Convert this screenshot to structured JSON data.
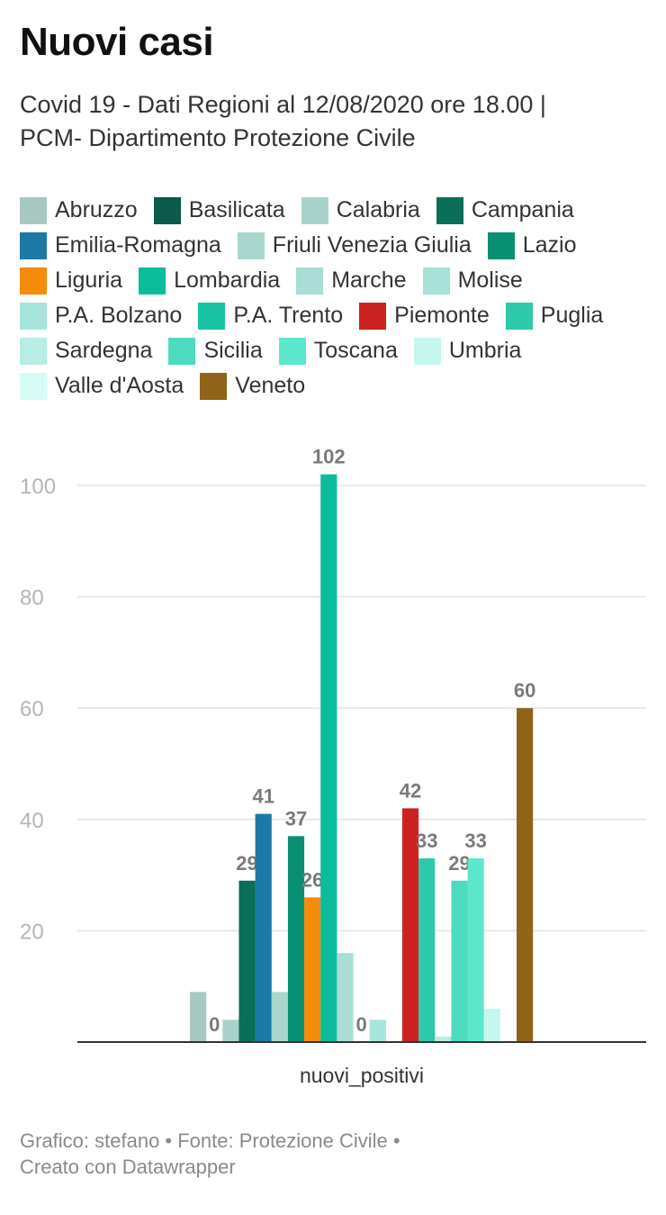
{
  "title": "Nuovi casi",
  "subtitle_line1": "Covid 19 - Dati Regioni al 12/08/2020 ore 18.00 |",
  "subtitle_line2": "PCM- Dipartimento Protezione Civile",
  "footer_line1": "Grafico: stefano • Fonte: Protezione Civile •",
  "footer_line2": "Creato con Datawrapper",
  "chart_data": {
    "type": "bar",
    "categories": [
      "nuovi_positivi"
    ],
    "xlabel": "nuovi_positivi",
    "ylim": [
      0,
      105
    ],
    "yticks": [
      20,
      40,
      60,
      80,
      100
    ],
    "grid": true,
    "legend_position": "top",
    "series": [
      {
        "name": "Abruzzo",
        "values": [
          9
        ],
        "color": "#a6c8c0",
        "label": ""
      },
      {
        "name": "Basilicata",
        "values": [
          0
        ],
        "color": "#0b5a4a",
        "label": "0"
      },
      {
        "name": "Calabria",
        "values": [
          4
        ],
        "color": "#a9d3ca",
        "label": ""
      },
      {
        "name": "Campania",
        "values": [
          29
        ],
        "color": "#0b6e57",
        "label": "29"
      },
      {
        "name": "Emilia-Romagna",
        "values": [
          41
        ],
        "color": "#1c79a5",
        "label": "41"
      },
      {
        "name": "Friuli Venezia Giulia",
        "values": [
          9
        ],
        "color": "#a9d6cd",
        "label": ""
      },
      {
        "name": "Lazio",
        "values": [
          37
        ],
        "color": "#098f72",
        "label": "37"
      },
      {
        "name": "Liguria",
        "values": [
          26
        ],
        "color": "#f58b0a",
        "label": "26"
      },
      {
        "name": "Lombardia",
        "values": [
          102
        ],
        "color": "#0bbc9c",
        "label": "102"
      },
      {
        "name": "Marche",
        "values": [
          16
        ],
        "color": "#a9ddd5",
        "label": ""
      },
      {
        "name": "Molise",
        "values": [
          0
        ],
        "color": "#a6e0d6",
        "label": "0"
      },
      {
        "name": "P.A. Bolzano",
        "values": [
          4
        ],
        "color": "#a6e5db",
        "label": ""
      },
      {
        "name": "P.A. Trento",
        "values": [
          0
        ],
        "color": "#18c4a4",
        "label": ""
      },
      {
        "name": "Piemonte",
        "values": [
          42
        ],
        "color": "#cc2222",
        "label": "42"
      },
      {
        "name": "Puglia",
        "values": [
          33
        ],
        "color": "#2ec8aa",
        "label": "33"
      },
      {
        "name": "Sardegna",
        "values": [
          1
        ],
        "color": "#b7ede4",
        "label": ""
      },
      {
        "name": "Sicilia",
        "values": [
          29
        ],
        "color": "#4ddbbf",
        "label": "29"
      },
      {
        "name": "Toscana",
        "values": [
          33
        ],
        "color": "#5ce6cb",
        "label": "33"
      },
      {
        "name": "Umbria",
        "values": [
          6
        ],
        "color": "#c6f7ee",
        "label": ""
      },
      {
        "name": "Valle d'Aosta",
        "values": [
          0
        ],
        "color": "#d5fbf4",
        "label": ""
      },
      {
        "name": "Veneto",
        "values": [
          60
        ],
        "color": "#8f6418",
        "label": "60"
      }
    ]
  }
}
